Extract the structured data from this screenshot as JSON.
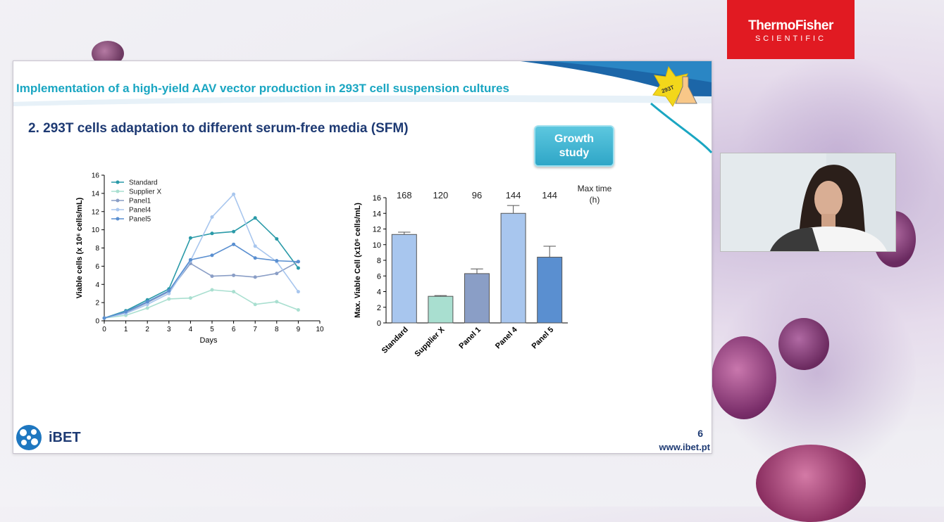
{
  "brand": {
    "line1": "ThermoFisher",
    "line2": "SCIENTIFIC"
  },
  "slide": {
    "header_title": "Implementation of a high-yield AAV vector production in 293T cell suspension cultures",
    "subtitle": "2. 293T cells adaptation to different serum-free media (SFM)",
    "badge": "Growth study",
    "flask_label": "293T",
    "page_number": "6",
    "website": "www.ibet.pt",
    "logo_text": "iBET",
    "max_time_label": [
      "Max time",
      "(h)"
    ]
  },
  "colors": {
    "standard": "#2a9aa8",
    "supplier_x": "#a9dfd0",
    "panel1": "#8a9ec6",
    "panel4": "#a8c6ee",
    "panel5": "#5a8fd0",
    "title_cyan": "#1aa6c2",
    "title_navy": "#1e3a73",
    "brand_red": "#e11a22"
  },
  "chart_data": [
    {
      "type": "line",
      "xlabel": "Days",
      "ylabel": "Viable cells (x 10⁶ cells/mL)",
      "xlim": [
        0,
        10
      ],
      "ylim": [
        0,
        16
      ],
      "xticks": [
        "0",
        "1",
        "2",
        "3",
        "4",
        "5",
        "6",
        "7",
        "8",
        "9",
        "10"
      ],
      "yticks": [
        "0",
        "2",
        "4",
        "6",
        "8",
        "10",
        "12",
        "14",
        "16"
      ],
      "legend_position": "top-left",
      "series": [
        {
          "name": "Standard",
          "color_key": "standard",
          "x": [
            0,
            1,
            2,
            3,
            4,
            5,
            6,
            7,
            8,
            9
          ],
          "y": [
            0.3,
            1.1,
            2.3,
            3.5,
            9.1,
            9.6,
            9.8,
            11.3,
            9.0,
            5.8
          ]
        },
        {
          "name": "Supplier X",
          "color_key": "supplier_x",
          "x": [
            0,
            1,
            2,
            3,
            4,
            5,
            6,
            7,
            8,
            9
          ],
          "y": [
            0.3,
            0.6,
            1.4,
            2.4,
            2.5,
            3.4,
            3.2,
            1.8,
            2.1,
            1.2
          ]
        },
        {
          "name": "Panel1",
          "color_key": "panel1",
          "x": [
            0,
            1,
            2,
            3,
            4,
            5,
            6,
            7,
            8,
            9
          ],
          "y": [
            0.3,
            0.9,
            2.0,
            3.2,
            6.3,
            4.9,
            5.0,
            4.8,
            5.2,
            6.5
          ]
        },
        {
          "name": "Panel4",
          "color_key": "panel4",
          "x": [
            0,
            1,
            2,
            3,
            4,
            5,
            6,
            7,
            8,
            9
          ],
          "y": [
            0.3,
            0.8,
            1.8,
            3.0,
            6.6,
            11.4,
            13.9,
            8.2,
            6.5,
            3.2
          ]
        },
        {
          "name": "Panel5",
          "color_key": "panel5",
          "x": [
            0,
            1,
            2,
            3,
            4,
            5,
            6,
            7,
            8,
            9
          ],
          "y": [
            0.3,
            1.0,
            2.1,
            3.3,
            6.7,
            7.2,
            8.4,
            6.9,
            6.6,
            6.5
          ]
        }
      ]
    },
    {
      "type": "bar",
      "ylabel": "Max. Viable Cell (x10⁶ cells/mL)",
      "ylim": [
        0,
        16
      ],
      "yticks": [
        "0",
        "2",
        "4",
        "6",
        "8",
        "10",
        "12",
        "14",
        "16"
      ],
      "categories": [
        "Standard",
        "Supplier X",
        "Panel 1",
        "Panel 4",
        "Panel 5"
      ],
      "values": [
        11.3,
        3.4,
        6.3,
        14.0,
        8.4
      ],
      "errors": [
        0.3,
        0.1,
        0.6,
        1.0,
        1.4
      ],
      "color_keys": [
        "panel4",
        "supplier_x",
        "panel1",
        "panel4",
        "panel5"
      ],
      "max_time_h": [
        "168",
        "120",
        "96",
        "144",
        "144"
      ]
    }
  ]
}
